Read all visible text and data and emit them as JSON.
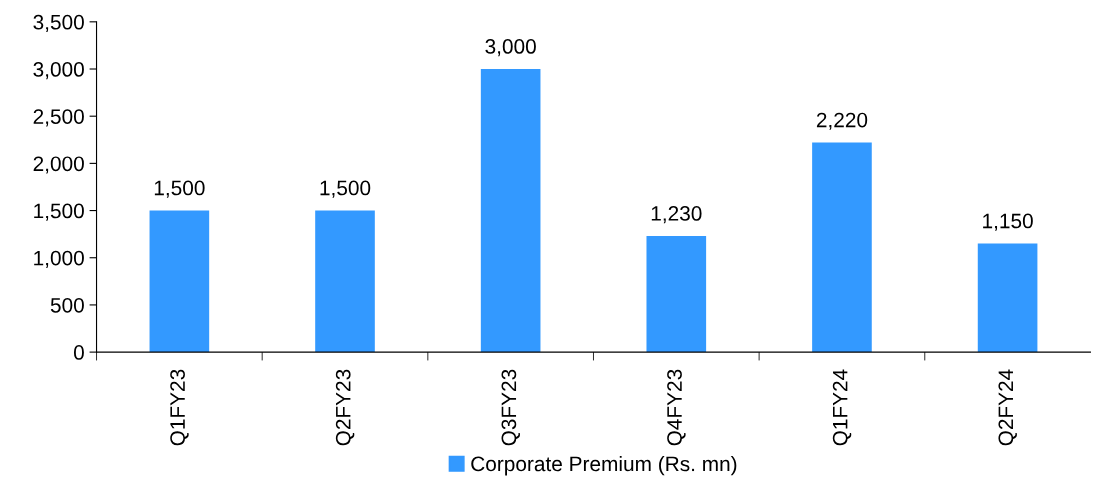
{
  "chart_data": {
    "type": "bar",
    "categories": [
      "Q1FY23",
      "Q2FY23",
      "Q3FY23",
      "Q4FY23",
      "Q1FY24",
      "Q2FY24"
    ],
    "series": [
      {
        "name": "Corporate Premium (Rs. mn)",
        "color": "#3399ff",
        "values": [
          1500,
          1500,
          3000,
          1230,
          2220,
          1150
        ],
        "value_labels": [
          "1,500",
          "1,500",
          "3,000",
          "1,230",
          "2,220",
          "1,150"
        ]
      }
    ],
    "ylim": [
      0,
      3500
    ],
    "yticks": [
      0,
      500,
      {
        "value": 1000,
        "label": "1,000"
      },
      {
        "value": 1500,
        "label": "1,500"
      },
      {
        "value": 2000,
        "label": "2,000"
      },
      {
        "value": 2500,
        "label": "2,500"
      },
      {
        "value": 3000,
        "label": "3,000"
      },
      {
        "value": 3500,
        "label": "3,500"
      }
    ],
    "grid": false,
    "legend": "bottom"
  }
}
